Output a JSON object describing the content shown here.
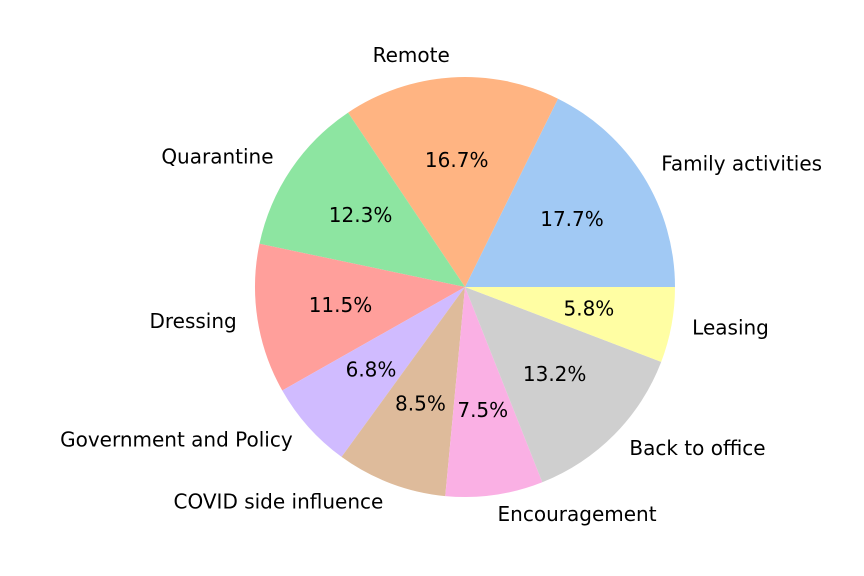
{
  "chart_data": {
    "type": "pie",
    "categories": [
      "Family activities",
      "Remote",
      "Quarantine",
      "Dressing",
      "Government and Policy",
      "COVID side influence",
      "Encouragement",
      "Back to office",
      "Leasing"
    ],
    "values": [
      17.7,
      16.7,
      12.3,
      11.5,
      6.8,
      8.5,
      7.5,
      13.2,
      5.8
    ],
    "value_labels": [
      "17.7%",
      "16.7%",
      "12.3%",
      "11.5%",
      "6.8%",
      "8.5%",
      "7.5%",
      "13.2%",
      "5.8%"
    ],
    "colors": [
      "#a1c9f4",
      "#ffb482",
      "#8de5a1",
      "#ff9f9b",
      "#d0bbff",
      "#debb9b",
      "#fab0e4",
      "#cfcfcf",
      "#fffea3"
    ]
  }
}
